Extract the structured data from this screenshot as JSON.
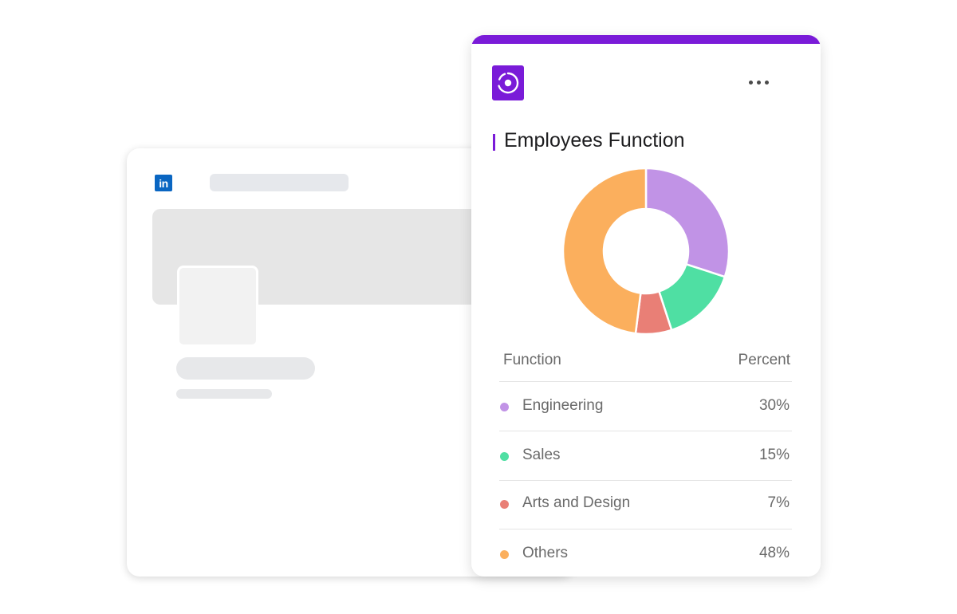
{
  "linkedin": {
    "logo_text": "in"
  },
  "widget": {
    "title": "Employees Function",
    "app_icon": "target-icon",
    "menu_icon": "more-horizontal-icon"
  },
  "table": {
    "headers": {
      "function": "Function",
      "percent": "Percent"
    },
    "rows": [
      {
        "label": "Engineering",
        "percent": "30%",
        "color": "#c193e6"
      },
      {
        "label": "Sales",
        "percent": "15%",
        "color": "#4fdfa3"
      },
      {
        "label": "Arts and Design",
        "percent": "7%",
        "color": "#e97f76"
      },
      {
        "label": "Others",
        "percent": "48%",
        "color": "#fbaf5d"
      }
    ]
  },
  "chart_data": {
    "type": "pie",
    "categories": [
      "Engineering",
      "Sales",
      "Arts and Design",
      "Others"
    ],
    "values": [
      30,
      15,
      7,
      48
    ],
    "colors": [
      "#c193e6",
      "#4fdfa3",
      "#e97f76",
      "#fbaf5d"
    ],
    "title": "Employees Function"
  }
}
